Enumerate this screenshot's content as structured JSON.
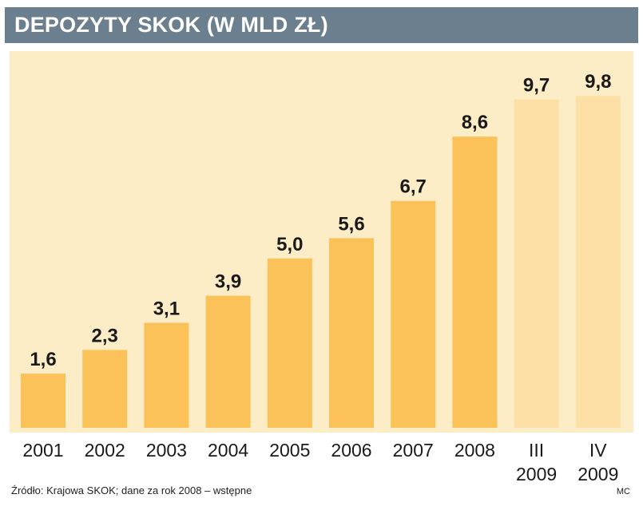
{
  "title": "DEPOZYTY SKOK (W MLD ZŁ)",
  "source": "Źródło: Krajowa SKOK; dane za rok 2008 – wstępne",
  "author": "MC",
  "colors": {
    "title_bg": "#6b7f8e",
    "panel_bg": "#fdedc7",
    "bar": "#fcc25a",
    "bar_light": "#fde0a6"
  },
  "chart_data": {
    "type": "bar",
    "title": "DEPOZYTY SKOK (W MLD ZŁ)",
    "categories": [
      "2001",
      "2002",
      "2003",
      "2004",
      "2005",
      "2006",
      "2007",
      "2008",
      "III\n2009",
      "IV\n2009"
    ],
    "tick_lines": [
      [
        "2001"
      ],
      [
        "2002"
      ],
      [
        "2003"
      ],
      [
        "2004"
      ],
      [
        "2005"
      ],
      [
        "2006"
      ],
      [
        "2007"
      ],
      [
        "2008"
      ],
      [
        "III",
        "2009"
      ],
      [
        "IV",
        "2009"
      ]
    ],
    "values": [
      1.6,
      2.3,
      3.1,
      3.9,
      5.0,
      5.6,
      6.7,
      8.6,
      9.7,
      9.8
    ],
    "data_labels": [
      "1,6",
      "2,3",
      "3,1",
      "3,9",
      "5,0",
      "5,6",
      "6,7",
      "8,6",
      "9,7",
      "9,8"
    ],
    "light_bars": [
      8,
      9
    ],
    "xlabel": "",
    "ylabel": "",
    "ylim": [
      0,
      10.3
    ],
    "grid": false,
    "legend": "none"
  }
}
